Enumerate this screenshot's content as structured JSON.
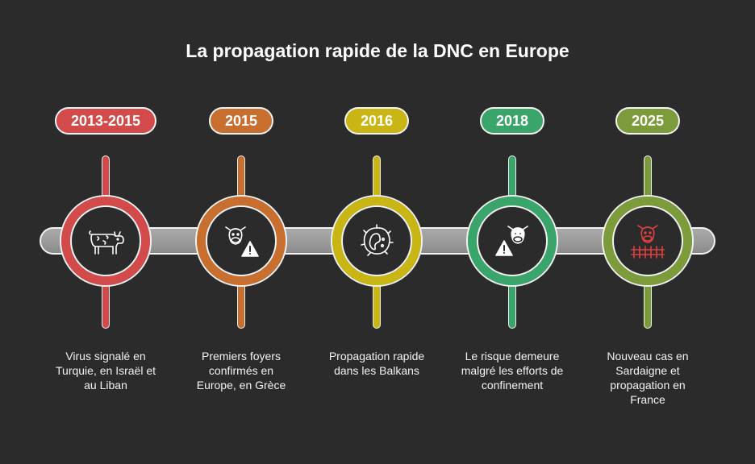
{
  "title": "La propagation rapide de la DNC en Europe",
  "milestones": [
    {
      "year": "2013-2015",
      "text": "Virus signalé en Turquie, en Israël et au Liban",
      "color": "#d24a4a",
      "icon": "cow-icon"
    },
    {
      "year": "2015",
      "text": "Premiers foyers confirmés en Europe, en Grèce",
      "color": "#c86e2e",
      "icon": "cow-warning-icon"
    },
    {
      "year": "2016",
      "text": "Propagation rapide dans les Balkans",
      "color": "#c9b514",
      "icon": "virus-icon"
    },
    {
      "year": "2018",
      "text": "Le risque demeure malgré les efforts de confinement",
      "color": "#3aa56b",
      "icon": "cow-alert-icon"
    },
    {
      "year": "2025",
      "text": "Nouveau cas en Sardaigne et propagation en France",
      "color": "#7c9b3a",
      "icon": "cow-fence-icon"
    }
  ]
}
